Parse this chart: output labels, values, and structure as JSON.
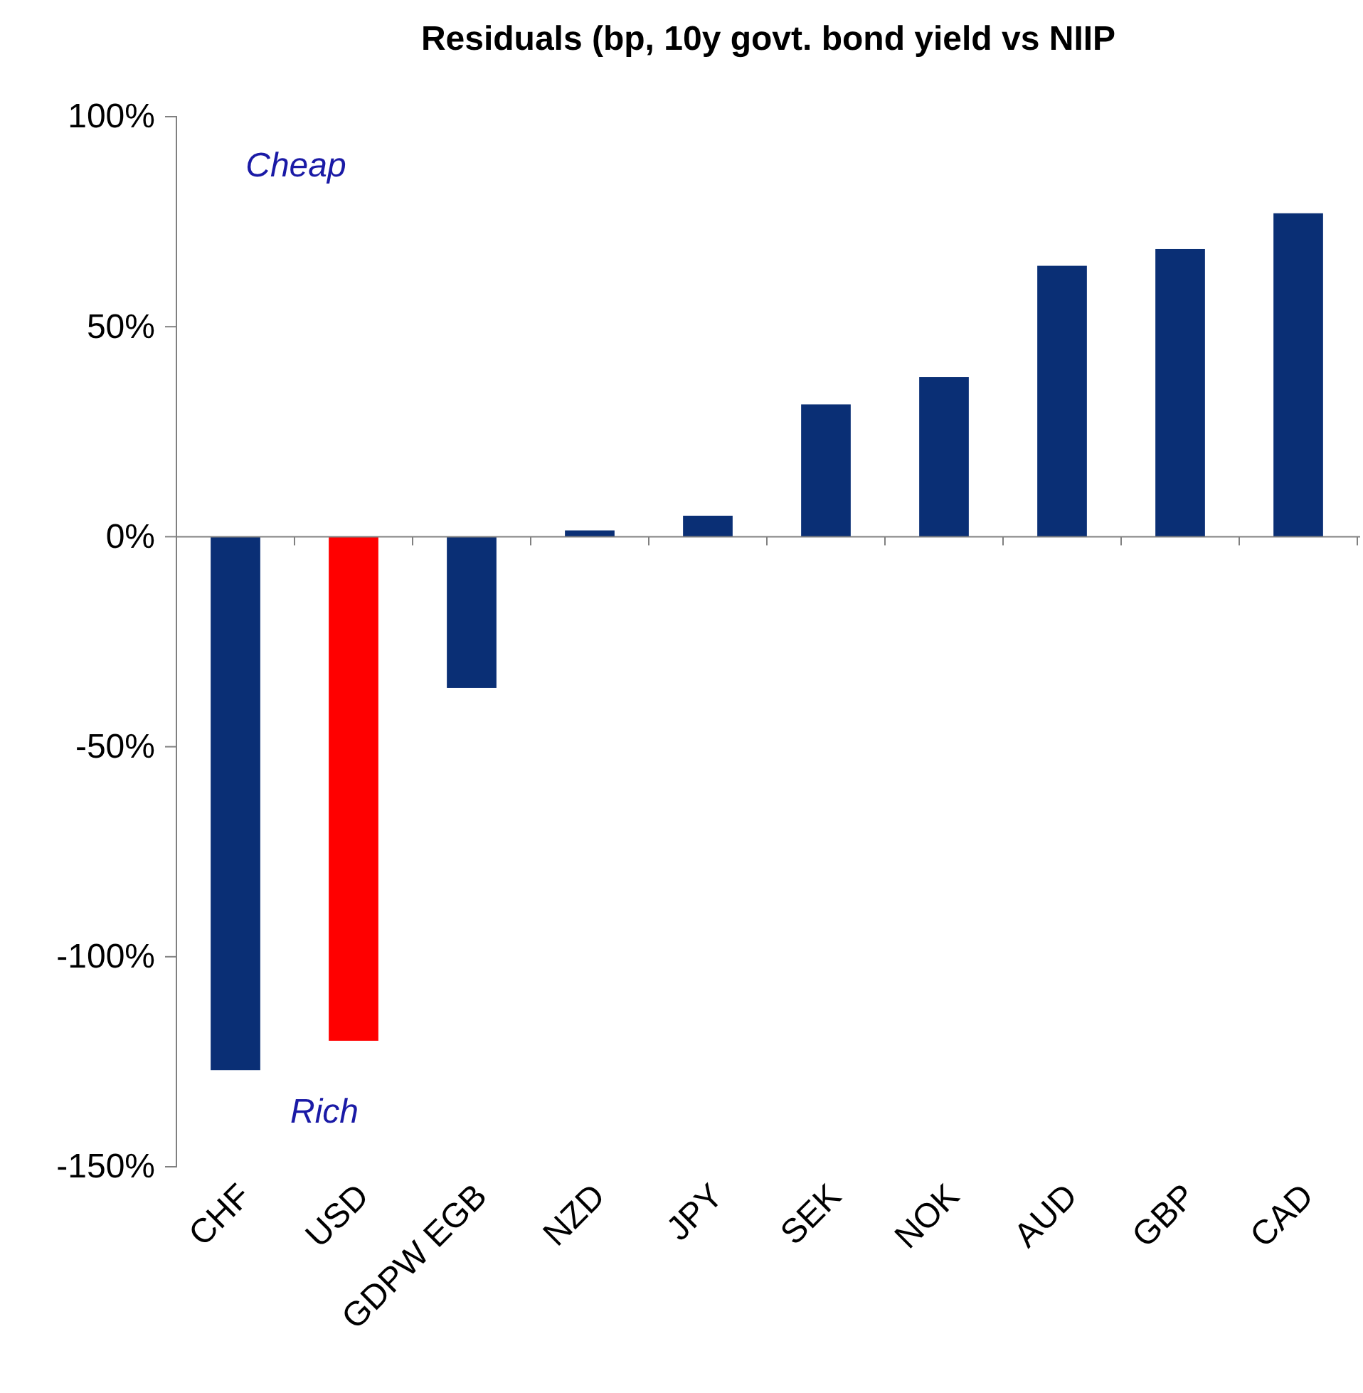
{
  "chart_data": {
    "type": "bar",
    "title": "Residuals (bp, 10y govt. bond yield vs NIIP",
    "categories": [
      "CHF",
      "USD",
      "GDPW EGB",
      "NZD",
      "JPY",
      "SEK",
      "NOK",
      "AUD",
      "GBP",
      "CAD"
    ],
    "values": [
      -127,
      -120,
      -36,
      1.5,
      5,
      31.5,
      38,
      64.5,
      68.5,
      77
    ],
    "colors": [
      "#0a2f75",
      "#ff0000",
      "#0a2f75",
      "#0a2f75",
      "#0a2f75",
      "#0a2f75",
      "#0a2f75",
      "#0a2f75",
      "#0a2f75",
      "#0a2f75"
    ],
    "ylim": [
      -150,
      100
    ],
    "yticks": [
      {
        "value": -150,
        "label": "-150%"
      },
      {
        "value": -100,
        "label": "-100%"
      },
      {
        "value": -50,
        "label": "-50%"
      },
      {
        "value": 0,
        "label": "0%"
      },
      {
        "value": 50,
        "label": "50%"
      },
      {
        "value": 100,
        "label": "100%"
      }
    ],
    "annotations": [
      "Cheap",
      "Rich"
    ]
  }
}
